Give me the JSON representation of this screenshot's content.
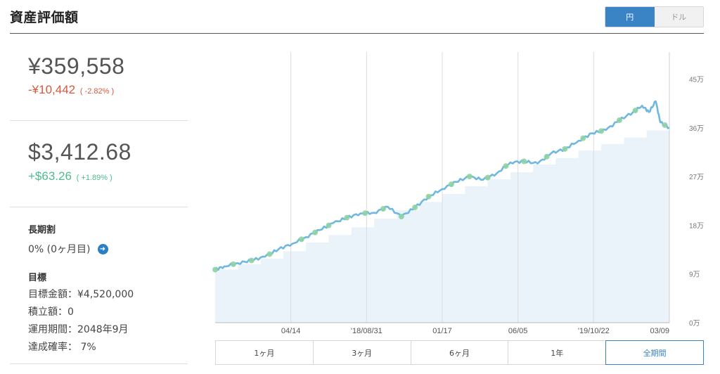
{
  "header": {
    "title": "資産評価額",
    "currency_options": [
      {
        "label": "円",
        "active": true
      },
      {
        "label": "ドル",
        "active": false
      }
    ]
  },
  "summary": {
    "jpy": {
      "value": "¥359,558",
      "change": "-¥10,442",
      "change_pct": "( -2.82% )"
    },
    "usd": {
      "value": "$3,412.68",
      "change": "+$63.26",
      "change_pct": "( +1.89% )"
    }
  },
  "long_term": {
    "title": "長期割",
    "value": "0% (0ヶ月目)",
    "arrow_icon": "arrow-right-circle-icon"
  },
  "goal": {
    "title": "目標",
    "items": [
      "目標金額：¥4,520,000",
      "積立額：0",
      "運用期間：2048年9月",
      "達成確率： 7%"
    ]
  },
  "range_tabs": [
    {
      "label": "1ヶ月",
      "active": false
    },
    {
      "label": "3ヶ月",
      "active": false
    },
    {
      "label": "6ヶ月",
      "active": false
    },
    {
      "label": "1年",
      "active": false
    },
    {
      "label": "全期間",
      "active": true
    }
  ],
  "colors": {
    "accent": "#3a84c6",
    "negative": "#d9573c",
    "positive": "#4fba8e",
    "line": "#6fb8e0",
    "area": "#eaf2fa",
    "marker": "#8ed3a4"
  },
  "chart_data": {
    "type": "line",
    "y_unit": "万",
    "ylim": [
      0,
      50
    ],
    "y_ticks": [
      0,
      9,
      18,
      27,
      36,
      45
    ],
    "y_tick_labels": [
      "0万",
      "9万",
      "18万",
      "27万",
      "36万",
      "45万"
    ],
    "x_tick_labels": [
      "04/14",
      "'18/08/31",
      "01/17",
      "06/05",
      "'19/10/22",
      "03/09"
    ],
    "grid": "vertical",
    "series": [
      {
        "role": "valuation",
        "x": [
          0,
          0.02,
          0.05,
          0.08,
          0.11,
          0.14,
          0.17,
          0.2,
          0.23,
          0.26,
          0.29,
          0.32,
          0.35,
          0.38,
          0.41,
          0.44,
          0.47,
          0.5,
          0.53,
          0.56,
          0.59,
          0.62,
          0.65,
          0.68,
          0.71,
          0.74,
          0.77,
          0.8,
          0.83,
          0.86,
          0.89,
          0.92,
          0.94,
          0.955,
          0.97,
          0.98,
          1.0
        ],
        "values": [
          9.8,
          10.4,
          11.0,
          11.5,
          12.2,
          13.6,
          14.6,
          15.8,
          17.1,
          18.4,
          19.4,
          20.2,
          20.3,
          21.4,
          19.6,
          21.3,
          23.3,
          24.7,
          26.0,
          27.0,
          26.4,
          27.6,
          29.6,
          29.8,
          29.4,
          31.3,
          32.1,
          33.6,
          35.0,
          35.6,
          37.4,
          38.9,
          40.1,
          38.9,
          40.9,
          37.0,
          36.0
        ]
      },
      {
        "role": "invested",
        "x": [
          0,
          0.05,
          0.1,
          0.15,
          0.2,
          0.25,
          0.3,
          0.35,
          0.4,
          0.45,
          0.5,
          0.55,
          0.6,
          0.65,
          0.7,
          0.75,
          0.8,
          0.85,
          0.9,
          0.95,
          1.0
        ],
        "values": [
          9.8,
          10.8,
          11.8,
          13.2,
          14.8,
          16.2,
          17.6,
          19.2,
          20.8,
          22.3,
          23.8,
          25.2,
          26.5,
          27.8,
          29.2,
          30.4,
          31.8,
          33.0,
          34.2,
          35.5,
          36.0
        ]
      }
    ],
    "marker_x": [
      0,
      0.04,
      0.08,
      0.12,
      0.19,
      0.22,
      0.25,
      0.29,
      0.33,
      0.37,
      0.41,
      0.44,
      0.47,
      0.52,
      0.56,
      0.6,
      0.64,
      0.68,
      0.73,
      0.77,
      0.81,
      0.85,
      0.89,
      0.925,
      0.99
    ]
  }
}
